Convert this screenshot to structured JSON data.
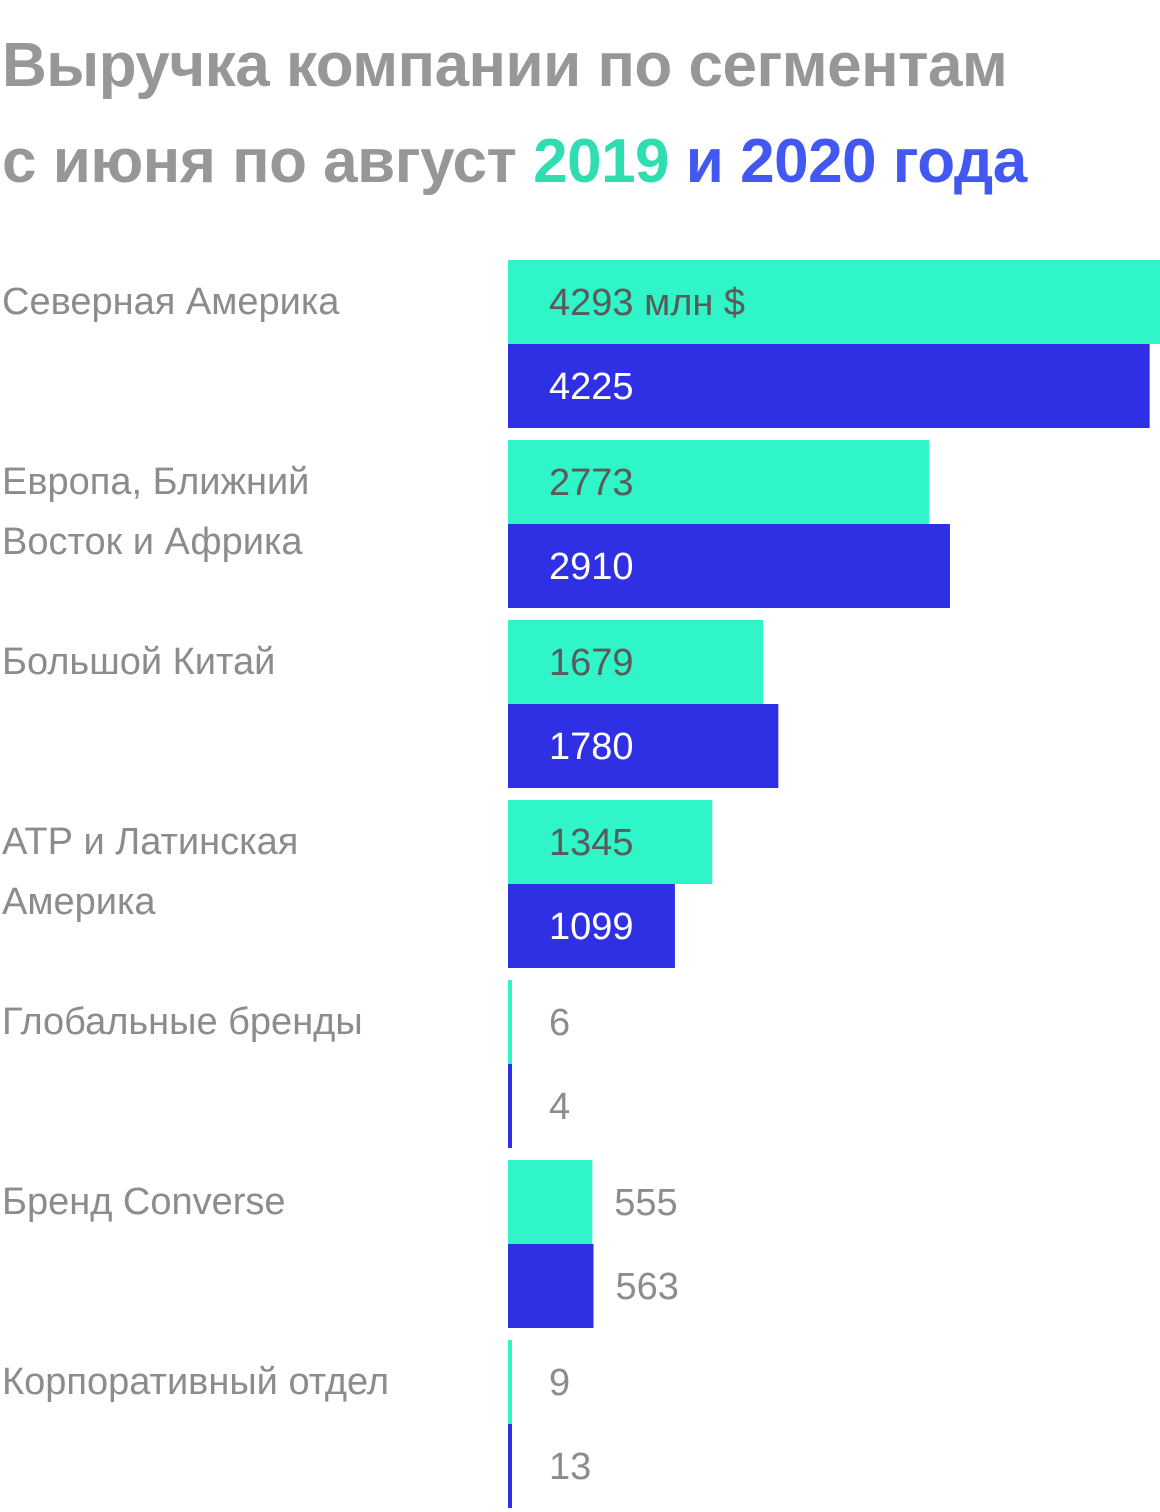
{
  "title": {
    "line1": "Выручка компании по сегментам",
    "line2_prefix": "с июня по август",
    "year_a": "2019",
    "connector": "и",
    "year_b": "2020 года"
  },
  "colors": {
    "y2019": "#30F5C8",
    "y2020": "#2F2FE3",
    "title_gray": "#979797"
  },
  "chart_data": {
    "type": "bar",
    "orientation": "horizontal",
    "unit_suffix": " млн $",
    "categories": [
      "Северная Америка",
      "Европа, Ближний Восток и Африка",
      "Большой Китай",
      "АТР и Латинская Америка",
      "Глобальные бренды",
      "Бренд Converse",
      "Корпоративный отдел"
    ],
    "category_lines": [
      [
        "Северная Америка"
      ],
      [
        "Европа, Ближний",
        "Восток и Африка"
      ],
      [
        "Большой Китай"
      ],
      [
        "АТР и Латинская",
        "Америка"
      ],
      [
        "Глобальные бренды"
      ],
      [
        "Бренд Converse"
      ],
      [
        "Корпоративный отдел"
      ]
    ],
    "series": [
      {
        "name": "2019",
        "values": [
          4293,
          2773,
          1679,
          1345,
          6,
          555,
          9
        ]
      },
      {
        "name": "2020",
        "values": [
          4225,
          2910,
          1780,
          1099,
          4,
          563,
          13
        ]
      }
    ],
    "xlim": [
      0,
      4293
    ]
  }
}
